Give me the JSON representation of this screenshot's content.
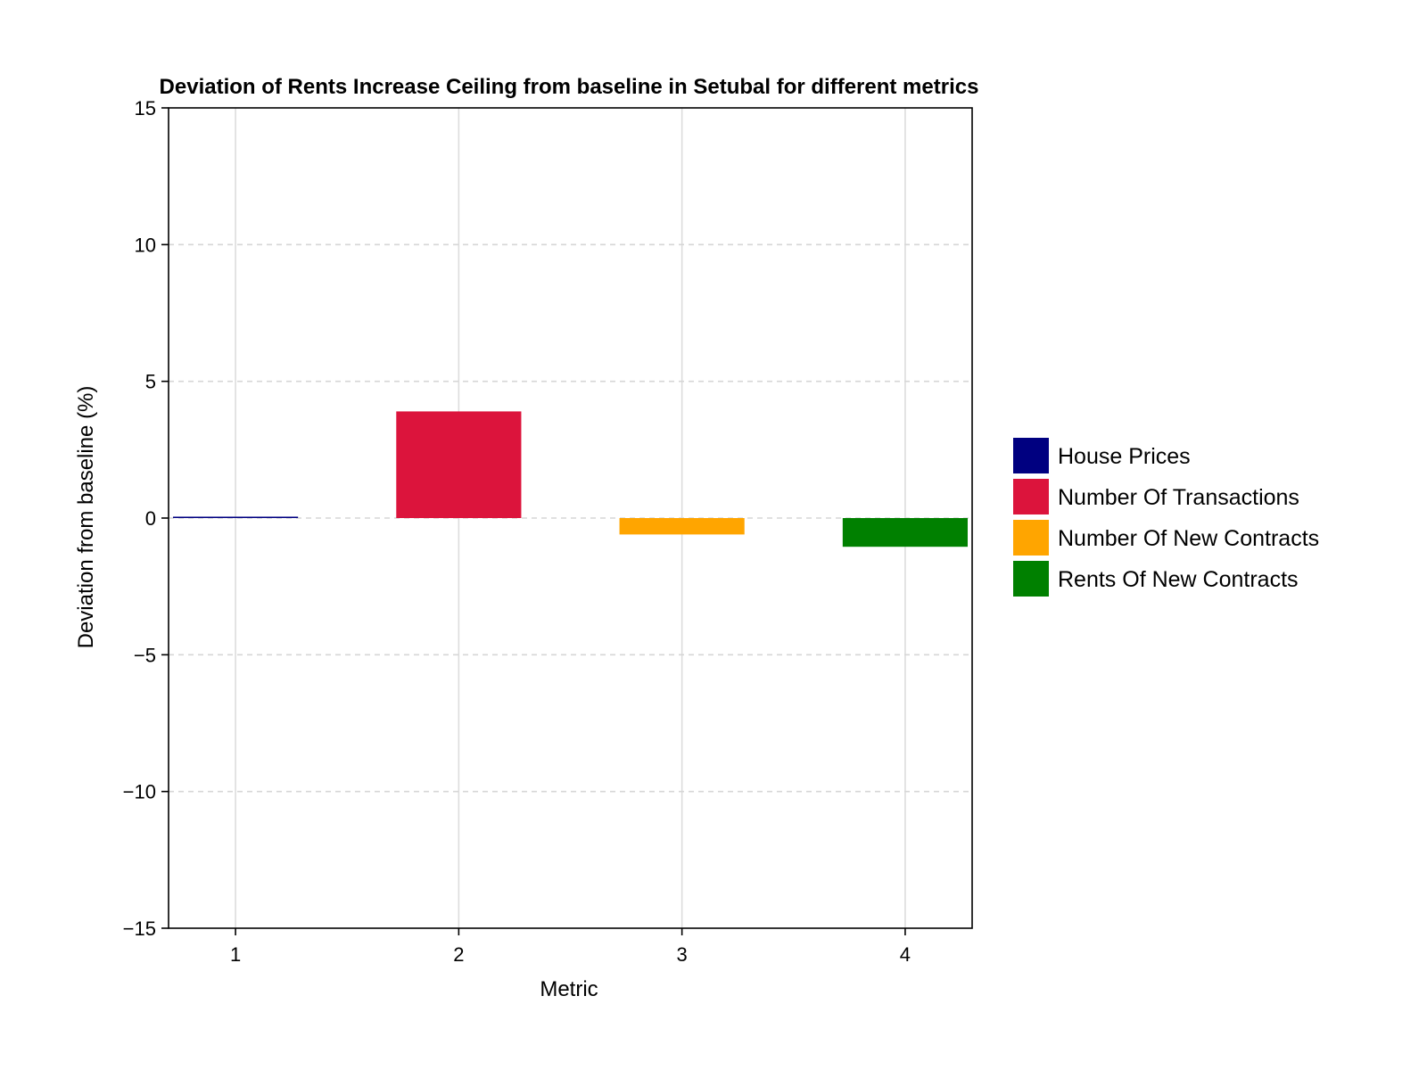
{
  "chart_data": {
    "type": "bar",
    "title": "Deviation of Rents Increase Ceiling from baseline in Setubal for different metrics",
    "xlabel": "Metric",
    "ylabel": "Deviation from baseline (%)",
    "categories": [
      "1",
      "2",
      "3",
      "4"
    ],
    "x": [
      1,
      2,
      3,
      4
    ],
    "series": [
      {
        "name": "House Prices",
        "x": 1,
        "value": 0.05,
        "color": "#000080"
      },
      {
        "name": "Number Of Transactions",
        "x": 2,
        "value": 3.9,
        "color": "#DC143C"
      },
      {
        "name": "Number Of New Contracts",
        "x": 3,
        "value": -0.6,
        "color": "#FFA500"
      },
      {
        "name": "Rents Of New Contracts",
        "x": 4,
        "value": -1.05,
        "color": "#008000"
      }
    ],
    "ylim": [
      -15,
      15
    ],
    "xlim": [
      0.7,
      4.3
    ],
    "yticks": [
      -15,
      -10,
      -5,
      0,
      5,
      10,
      15
    ],
    "ytick_labels": [
      "−15",
      "−10",
      "−5",
      "0",
      "5",
      "10",
      "15"
    ],
    "xticks": [
      1,
      2,
      3,
      4
    ],
    "xtick_labels": [
      "1",
      "2",
      "3",
      "4"
    ],
    "grid": true,
    "legend_position": "right"
  }
}
